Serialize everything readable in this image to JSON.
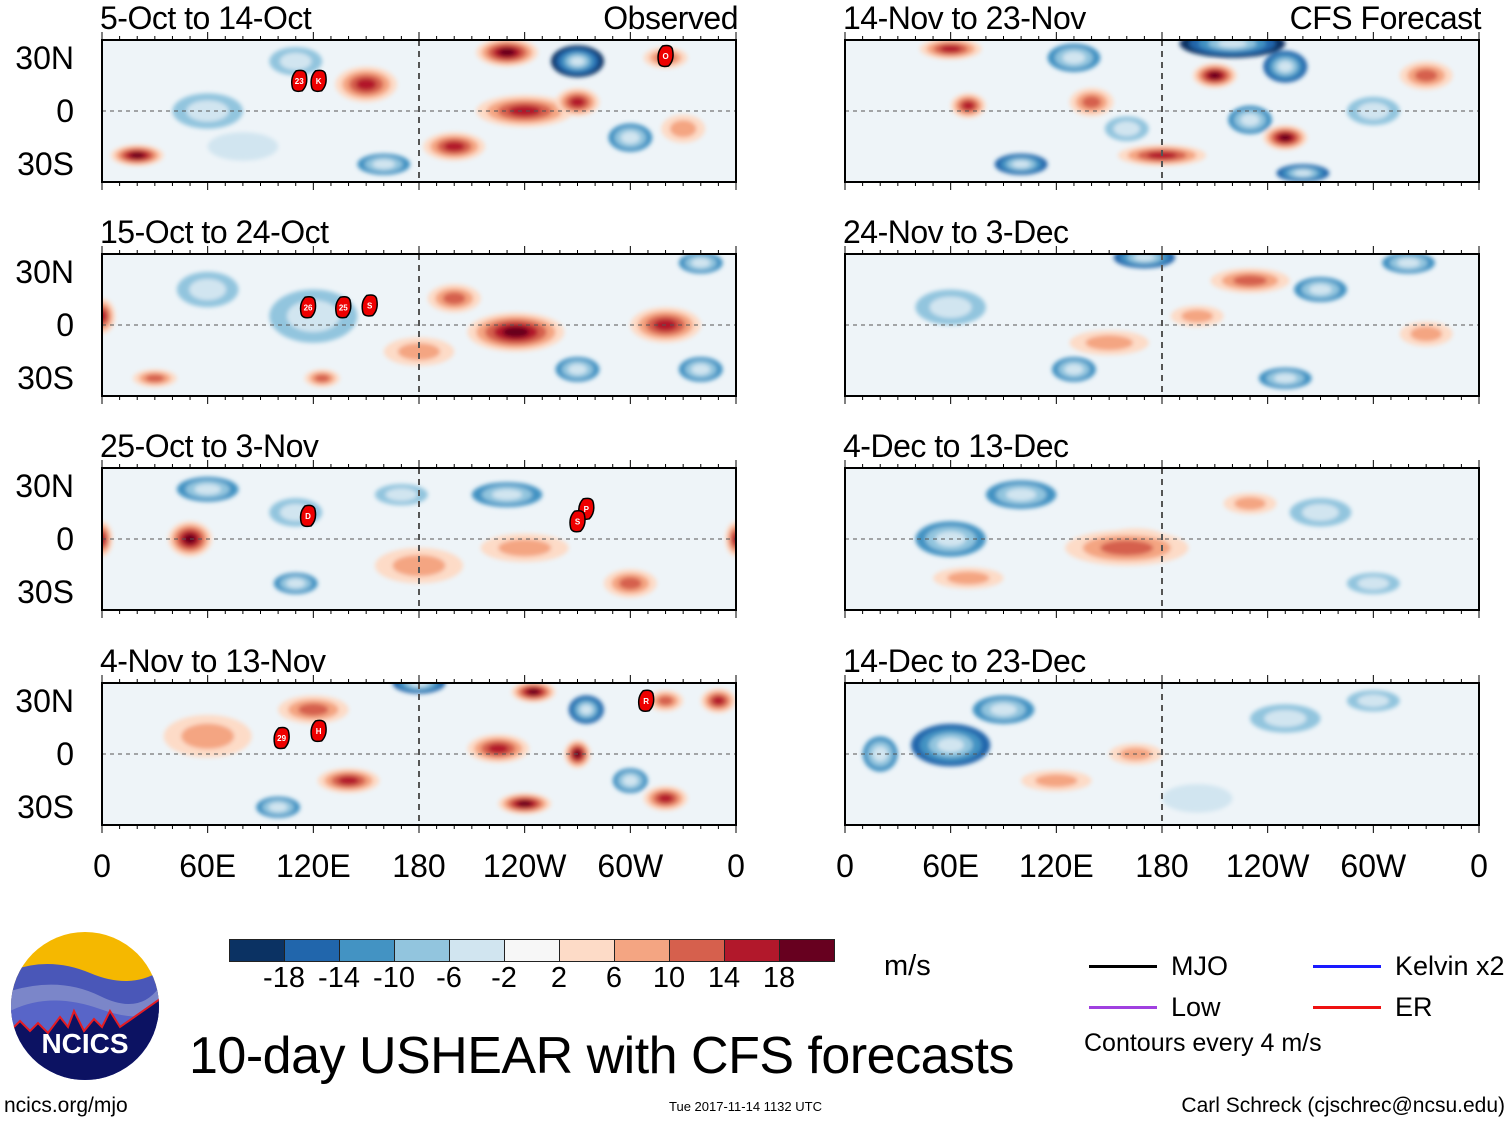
{
  "figure": {
    "title": "10-day USHEAR with CFS forecasts",
    "units": "m/s",
    "site": "ncics.org/mjo",
    "timestamp": "Tue 2017-11-14 1132 UTC",
    "author": "Carl Schreck (cjschrec@ncsu.edu)",
    "logo_text": "NCICS",
    "observed_label": "Observed",
    "forecast_label": "CFS Forecast",
    "contour_note": "Contours every 4 m/s"
  },
  "legend": [
    {
      "label": "MJO",
      "color": "#000000"
    },
    {
      "label": "Kelvin x2",
      "color": "#1a1aff"
    },
    {
      "label": "Low",
      "color": "#a040e0"
    },
    {
      "label": "ER",
      "color": "#ee1111"
    }
  ],
  "colorbar": {
    "ticks": [
      "-18",
      "-14",
      "-10",
      "-6",
      "-2",
      "2",
      "6",
      "10",
      "14",
      "18"
    ],
    "colors": [
      "#0b3263",
      "#2166ac",
      "#4393c3",
      "#92c5de",
      "#d1e5f0",
      "#f7f7f7",
      "#fddbc7",
      "#f4a582",
      "#d6604d",
      "#b2182b",
      "#67001f"
    ]
  },
  "axes": {
    "lat_labels": [
      "30N",
      "0",
      "30S"
    ],
    "lon_labels": [
      "0",
      "60E",
      "120E",
      "180",
      "120W",
      "60W",
      "0"
    ]
  },
  "chart_data": {
    "type": "heatmap",
    "variable": "USHEAR anomaly (m/s)",
    "levels": [
      -18,
      -14,
      -10,
      -6,
      -2,
      2,
      6,
      10,
      14,
      18
    ],
    "panels": [
      {
        "title": "5-Oct to 14-Oct",
        "kind": "observed",
        "features": [
          [
            150,
            15,
            35,
            10,
            14
          ],
          [
            230,
            33,
            35,
            8,
            18
          ],
          [
            240,
            0,
            55,
            9,
            14
          ],
          [
            200,
            -20,
            35,
            8,
            14
          ],
          [
            270,
            5,
            25,
            8,
            14
          ],
          [
            270,
            28,
            30,
            9,
            -18
          ],
          [
            160,
            -30,
            30,
            6,
            -10
          ],
          [
            20,
            -25,
            30,
            6,
            18
          ],
          [
            60,
            0,
            40,
            10,
            -6
          ],
          [
            320,
            30,
            25,
            6,
            10
          ],
          [
            300,
            -15,
            25,
            8,
            -10
          ],
          [
            330,
            -10,
            25,
            8,
            6
          ],
          [
            110,
            28,
            30,
            8,
            -6
          ],
          [
            80,
            -20,
            40,
            8,
            -2
          ]
        ],
        "storms": [
          {
            "label": "23",
            "lon": 112,
            "lat": 17
          },
          {
            "label": "K",
            "lon": 123,
            "lat": 17
          },
          {
            "label": "O",
            "lon": 320,
            "lat": 31
          }
        ]
      },
      {
        "title": "15-Oct to 24-Oct",
        "kind": "observed",
        "features": [
          [
            235,
            -4,
            55,
            11,
            22
          ],
          [
            320,
            0,
            40,
            10,
            14
          ],
          [
            200,
            15,
            30,
            8,
            10
          ],
          [
            120,
            5,
            50,
            15,
            -6
          ],
          [
            270,
            -25,
            25,
            7,
            -10
          ],
          [
            340,
            -25,
            25,
            7,
            -10
          ],
          [
            125,
            -30,
            20,
            5,
            10
          ],
          [
            30,
            -30,
            25,
            5,
            10
          ],
          [
            0,
            5,
            15,
            10,
            14
          ],
          [
            340,
            35,
            25,
            6,
            -10
          ],
          [
            60,
            20,
            35,
            10,
            -6
          ],
          [
            180,
            -15,
            40,
            8,
            6
          ]
        ],
        "storms": [
          {
            "label": "26",
            "lon": 117,
            "lat": 10
          },
          {
            "label": "25",
            "lon": 137,
            "lat": 10
          },
          {
            "label": "S",
            "lon": 152,
            "lat": 11
          }
        ]
      },
      {
        "title": "25-Oct to 3-Nov",
        "kind": "observed",
        "features": [
          [
            50,
            0,
            25,
            10,
            18
          ],
          [
            0,
            0,
            12,
            10,
            14
          ],
          [
            360,
            0,
            12,
            10,
            14
          ],
          [
            60,
            28,
            35,
            7,
            -10
          ],
          [
            170,
            25,
            30,
            6,
            -6
          ],
          [
            230,
            25,
            40,
            7,
            -10
          ],
          [
            240,
            -5,
            50,
            8,
            6
          ],
          [
            300,
            -25,
            30,
            8,
            10
          ],
          [
            110,
            15,
            30,
            8,
            -6
          ],
          [
            110,
            -25,
            25,
            6,
            -10
          ],
          [
            180,
            -15,
            50,
            10,
            6
          ]
        ],
        "storms": [
          {
            "label": "D",
            "lon": 117,
            "lat": 13
          },
          {
            "label": "P",
            "lon": 275,
            "lat": 17
          },
          {
            "label": "S",
            "lon": 270,
            "lat": 10
          }
        ]
      },
      {
        "title": "4-Nov to 13-Nov",
        "kind": "observed",
        "features": [
          [
            120,
            25,
            40,
            8,
            10
          ],
          [
            225,
            3,
            35,
            8,
            14
          ],
          [
            270,
            0,
            15,
            8,
            18
          ],
          [
            275,
            25,
            20,
            8,
            -14
          ],
          [
            245,
            35,
            25,
            6,
            18
          ],
          [
            180,
            40,
            30,
            6,
            -14
          ],
          [
            140,
            -15,
            35,
            7,
            14
          ],
          [
            240,
            -28,
            30,
            6,
            18
          ],
          [
            320,
            -25,
            25,
            7,
            14
          ],
          [
            300,
            -15,
            20,
            7,
            -10
          ],
          [
            350,
            30,
            20,
            7,
            14
          ],
          [
            320,
            30,
            20,
            6,
            10
          ],
          [
            100,
            -30,
            25,
            6,
            -10
          ],
          [
            60,
            10,
            50,
            12,
            6
          ]
        ],
        "storms": [
          {
            "label": "29",
            "lon": 102,
            "lat": 9
          },
          {
            "label": "H",
            "lon": 123,
            "lat": 13
          },
          {
            "label": "R",
            "lon": 309,
            "lat": 30
          }
        ]
      },
      {
        "title": "14-Nov to 23-Nov",
        "kind": "forecast",
        "features": [
          [
            220,
            38,
            60,
            8,
            -18
          ],
          [
            210,
            20,
            25,
            7,
            18
          ],
          [
            250,
            25,
            25,
            9,
            -14
          ],
          [
            250,
            -15,
            25,
            7,
            18
          ],
          [
            60,
            35,
            35,
            6,
            14
          ],
          [
            70,
            3,
            20,
            7,
            14
          ],
          [
            130,
            30,
            30,
            8,
            -10
          ],
          [
            140,
            5,
            25,
            8,
            10
          ],
          [
            100,
            -30,
            30,
            6,
            -14
          ],
          [
            180,
            -25,
            50,
            6,
            14
          ],
          [
            260,
            -35,
            30,
            5,
            -14
          ],
          [
            160,
            -10,
            25,
            7,
            -6
          ],
          [
            230,
            -5,
            25,
            8,
            -10
          ],
          [
            330,
            20,
            30,
            8,
            10
          ],
          [
            300,
            0,
            30,
            8,
            -6
          ]
        ],
        "storms": []
      },
      {
        "title": "24-Nov to 3-Dec",
        "kind": "forecast",
        "features": [
          [
            170,
            38,
            35,
            6,
            -14
          ],
          [
            230,
            25,
            45,
            7,
            10
          ],
          [
            270,
            20,
            30,
            7,
            -10
          ],
          [
            320,
            35,
            30,
            6,
            -10
          ],
          [
            330,
            -5,
            30,
            7,
            6
          ],
          [
            130,
            -25,
            25,
            7,
            -10
          ],
          [
            150,
            -10,
            45,
            7,
            6
          ],
          [
            250,
            -30,
            30,
            6,
            -10
          ],
          [
            60,
            10,
            40,
            10,
            -6
          ],
          [
            200,
            5,
            30,
            6,
            6
          ]
        ],
        "storms": []
      },
      {
        "title": "4-Dec to 13-Dec",
        "kind": "forecast",
        "features": [
          [
            165,
            0,
            35,
            6,
            14
          ],
          [
            160,
            -5,
            70,
            10,
            10
          ],
          [
            60,
            0,
            40,
            10,
            -10
          ],
          [
            100,
            25,
            40,
            8,
            -10
          ],
          [
            70,
            -22,
            40,
            6,
            6
          ],
          [
            270,
            15,
            35,
            8,
            -6
          ],
          [
            230,
            20,
            30,
            6,
            6
          ],
          [
            300,
            -25,
            30,
            6,
            -6
          ]
        ],
        "storms": []
      },
      {
        "title": "14-Dec to 23-Dec",
        "kind": "forecast",
        "features": [
          [
            60,
            5,
            45,
            12,
            -14
          ],
          [
            90,
            25,
            35,
            8,
            -10
          ],
          [
            20,
            0,
            20,
            10,
            -10
          ],
          [
            165,
            0,
            30,
            6,
            6
          ],
          [
            120,
            -15,
            40,
            6,
            6
          ],
          [
            250,
            20,
            40,
            8,
            -6
          ],
          [
            300,
            30,
            30,
            6,
            -6
          ],
          [
            200,
            -25,
            40,
            8,
            -2
          ]
        ],
        "storms": []
      }
    ]
  }
}
